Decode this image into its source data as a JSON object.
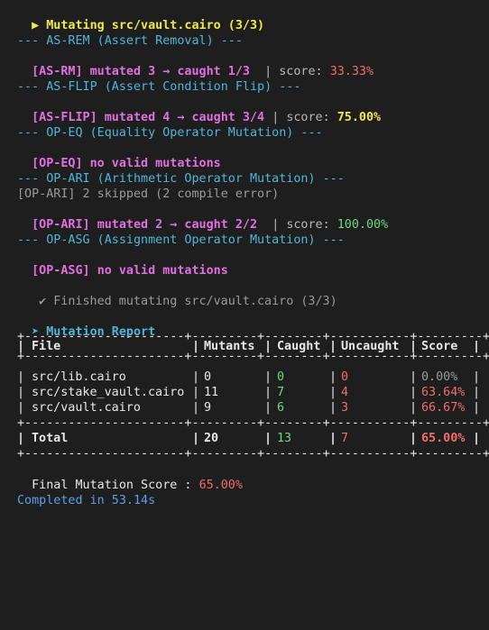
{
  "header": {
    "arrow": "▶",
    "title": "Mutating src/vault.cairo (3/3)"
  },
  "operators": [
    {
      "heading": "--- AS-REM (Assert Removal) ---",
      "result_tag": "[AS-RM]",
      "result_text": "mutated 3 → caught 1/3",
      "score_label": "score:",
      "score_value": "33.33%",
      "score_color": "#f06d6d"
    },
    {
      "heading": "--- AS-FLIP (Assert Condition Flip) ---",
      "result_tag": "[AS-FLIP]",
      "result_text": "mutated 4 → caught 3/4",
      "score_label": "score:",
      "score_value": "75.00%",
      "score_color": "#f2e84a"
    },
    {
      "heading": "--- OP-EQ (Equality Operator Mutation) ---",
      "result_tag": "[OP-EQ]",
      "result_text": "no valid mutations"
    },
    {
      "heading": "--- OP-ARI (Arithmetic Operator Mutation) ---",
      "note": "[OP-ARI] 2 skipped (2 compile error)",
      "result_tag": "[OP-ARI]",
      "result_text": "mutated 2 → caught 2/2",
      "score_label": "score:",
      "score_value": "100.00%",
      "score_color": "#6cd97e"
    },
    {
      "heading": "--- OP-ASG (Assignment Operator Mutation) ---",
      "result_tag": "[OP-ASG]",
      "result_text": "no valid mutations"
    }
  ],
  "finished": {
    "check": "✔",
    "text": "Finished mutating src/vault.cairo (3/3)"
  },
  "report": {
    "arrow": "➤",
    "title": "Mutation Report",
    "border_top": "+----------------------+---------+--------+-----------+---------+",
    "border_mid": "+----------------------+---------+--------+-----------+---------+",
    "columns": [
      "File",
      "Mutants",
      "Caught",
      "Uncaught",
      "Score"
    ],
    "rows": [
      {
        "file": "src/lib.cairo",
        "mutants": "0",
        "caught": "0",
        "uncaught": "0",
        "score": "0.00%",
        "score_color": "#9a9a9a"
      },
      {
        "file": "src/stake_vault.cairo",
        "mutants": "11",
        "caught": "7",
        "uncaught": "4",
        "score": "63.64%",
        "score_color": "#f06d6d"
      },
      {
        "file": "src/vault.cairo",
        "mutants": "9",
        "caught": "6",
        "uncaught": "3",
        "score": "66.67%",
        "score_color": "#f06d6d"
      }
    ],
    "total": {
      "file": "Total",
      "mutants": "20",
      "caught": "13",
      "uncaught": "7",
      "score": "65.00%"
    }
  },
  "final_score": {
    "label": "Final Mutation Score :",
    "value": "65.00%"
  },
  "completed": "Completed in 53.14s"
}
